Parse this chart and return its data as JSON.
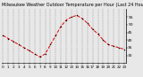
{
  "title": "Milwaukee Weather Outdoor Temperature per Hour (Last 24 Hours)",
  "hours": [
    0,
    1,
    2,
    3,
    4,
    5,
    6,
    7,
    8,
    9,
    10,
    11,
    12,
    13,
    14,
    15,
    16,
    17,
    18,
    19,
    20,
    21,
    22,
    23
  ],
  "temps": [
    43,
    41,
    39,
    37,
    35,
    33,
    31,
    29,
    31,
    37,
    43,
    49,
    53,
    55,
    56,
    54,
    51,
    47,
    44,
    40,
    37,
    36,
    35,
    34
  ],
  "line_color": "#dd0000",
  "marker_color": "#000000",
  "bg_color": "#e8e8e8",
  "plot_bg_color": "#e8e8e8",
  "grid_color": "#888888",
  "ylim_min": 25,
  "ylim_max": 60,
  "ylabel_fontsize": 3.2,
  "xlabel_fontsize": 3.0,
  "title_fontsize": 3.5,
  "ytick_values": [
    30,
    35,
    40,
    45,
    50,
    55
  ],
  "ytick_labels": [
    "30",
    "35",
    "40",
    "45",
    "50",
    "55"
  ]
}
